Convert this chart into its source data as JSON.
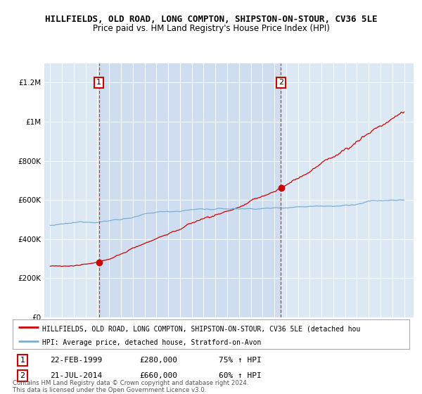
{
  "title": "HILLFIELDS, OLD ROAD, LONG COMPTON, SHIPSTON-ON-STOUR, CV36 5LE",
  "subtitle": "Price paid vs. HM Land Registry's House Price Index (HPI)",
  "ylim": [
    0,
    1300000
  ],
  "yticks": [
    0,
    200000,
    400000,
    600000,
    800000,
    1000000,
    1200000
  ],
  "ytick_labels": [
    "£0",
    "£200K",
    "£400K",
    "£600K",
    "£800K",
    "£1M",
    "£1.2M"
  ],
  "background_color": "#ffffff",
  "plot_bg_color": "#dce9f5",
  "grid_color": "#ffffff",
  "red_line_color": "#cc0000",
  "blue_line_color": "#7aafd4",
  "highlight_color": "#c5d8ee",
  "transaction1": {
    "year": 1999.13,
    "price": 280000,
    "label": "1",
    "date": "22-FEB-1999",
    "hpi_pct": "75% ↑ HPI"
  },
  "transaction2": {
    "year": 2014.55,
    "price": 660000,
    "label": "2",
    "date": "21-JUL-2014",
    "hpi_pct": "60% ↑ HPI"
  },
  "legend_red": "HILLFIELDS, OLD ROAD, LONG COMPTON, SHIPSTON-ON-STOUR, CV36 5LE (detached hou",
  "legend_blue": "HPI: Average price, detached house, Stratford-on-Avon",
  "footer": "Contains HM Land Registry data © Crown copyright and database right 2024.\nThis data is licensed under the Open Government Licence v3.0.",
  "title_fontsize": 9,
  "subtitle_fontsize": 8.5
}
